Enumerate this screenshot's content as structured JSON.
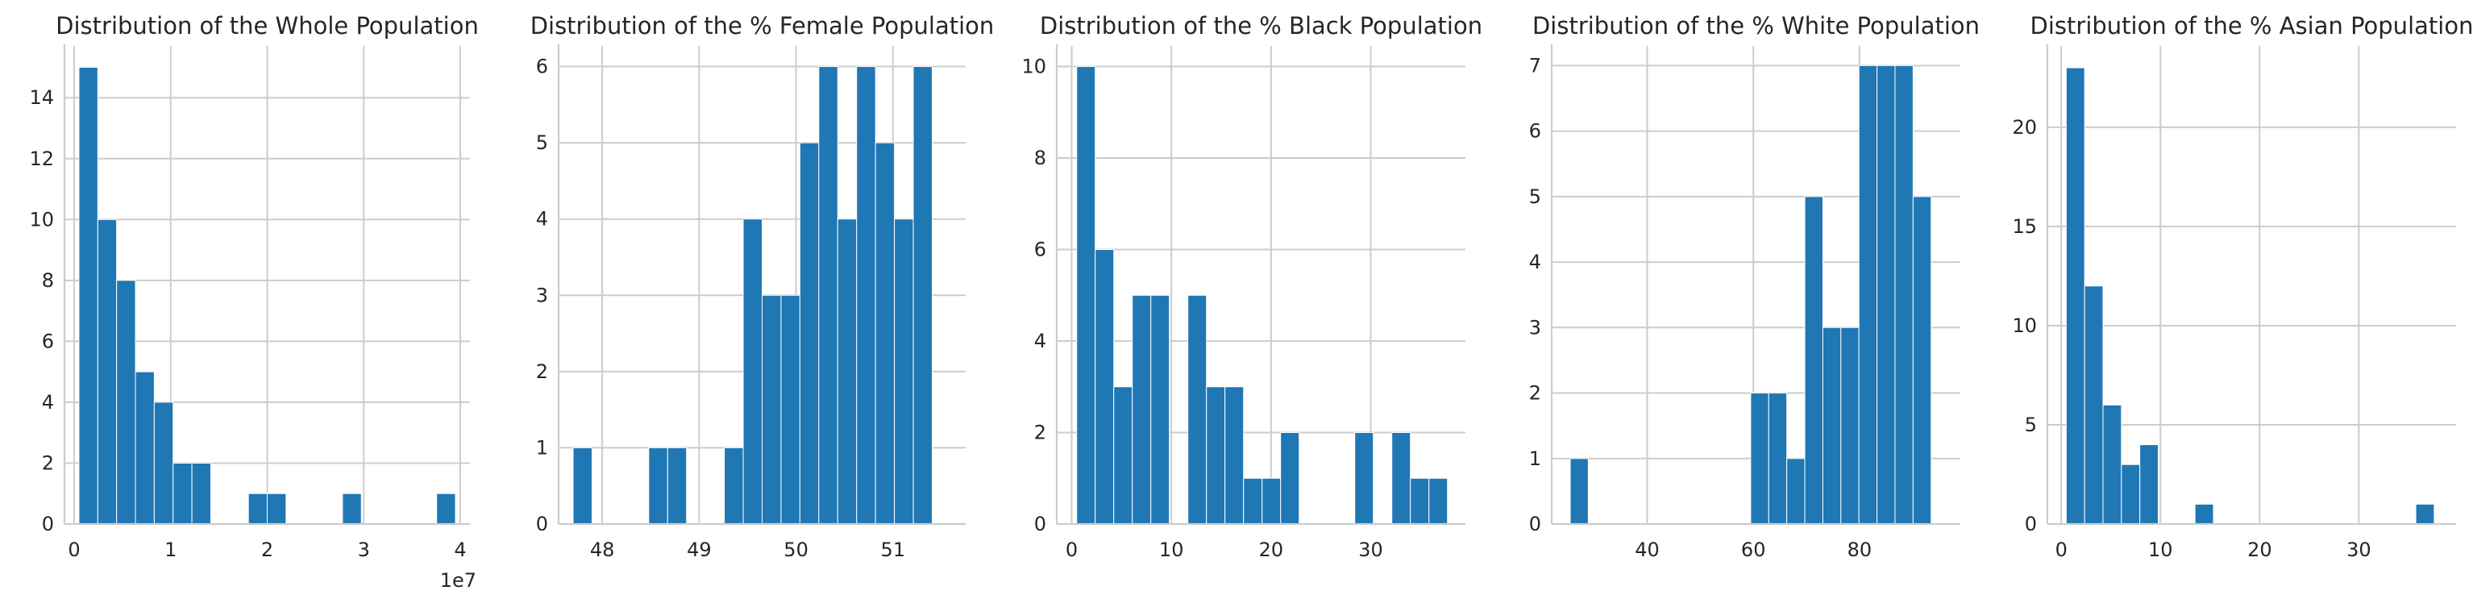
{
  "colors": {
    "bar": "#1f77b4",
    "grid": "#cccccc",
    "text": "#262626",
    "background": "#ffffff"
  },
  "chart_data": [
    {
      "type": "bar",
      "title": "Distribution of the Whole Population",
      "xlabel": "",
      "ylabel": "",
      "grid": true,
      "x_scale_label": "1e7",
      "xlim": [
        -0.1,
        4.1
      ],
      "ylim": [
        0,
        15.7
      ],
      "xticks": [
        0,
        1,
        2,
        3,
        4
      ],
      "xtick_labels": [
        "0",
        "1",
        "2",
        "3",
        "4"
      ],
      "yticks": [
        0,
        2,
        4,
        6,
        8,
        10,
        12,
        14
      ],
      "ytick_labels": [
        "0",
        "2",
        "4",
        "6",
        "8",
        "10",
        "12",
        "14"
      ],
      "bins": {
        "start": 0.05,
        "width": 0.195,
        "count": 20
      },
      "values": [
        15,
        10,
        8,
        5,
        4,
        2,
        2,
        0,
        0,
        1,
        1,
        0,
        0,
        0,
        1,
        0,
        0,
        0,
        0,
        1
      ]
    },
    {
      "type": "bar",
      "title": "Distribution of the % Female Population",
      "xlabel": "",
      "ylabel": "",
      "grid": true,
      "xlim": [
        47.55,
        51.75
      ],
      "ylim": [
        0,
        6.27
      ],
      "xticks": [
        48,
        49,
        50,
        51
      ],
      "xtick_labels": [
        "48",
        "49",
        "50",
        "51"
      ],
      "yticks": [
        0,
        1,
        2,
        3,
        4,
        5,
        6
      ],
      "ytick_labels": [
        "0",
        "1",
        "2",
        "3",
        "4",
        "5",
        "6"
      ],
      "bins": {
        "start": 47.7,
        "width": 0.195,
        "count": 20
      },
      "values": [
        1,
        0,
        0,
        0,
        1,
        1,
        0,
        0,
        1,
        4,
        3,
        3,
        5,
        6,
        4,
        6,
        5,
        4,
        6,
        0
      ]
    },
    {
      "type": "bar",
      "title": "Distribution of the % Black Population",
      "xlabel": "",
      "ylabel": "",
      "grid": true,
      "xlim": [
        -1.5,
        39.5
      ],
      "ylim": [
        0,
        10.45
      ],
      "xticks": [
        0,
        10,
        20,
        30
      ],
      "xtick_labels": [
        "0",
        "10",
        "20",
        "30"
      ],
      "yticks": [
        0,
        2,
        4,
        6,
        8,
        10
      ],
      "ytick_labels": [
        "0",
        "2",
        "4",
        "6",
        "8",
        "10"
      ],
      "bins": {
        "start": 0.5,
        "width": 1.86,
        "count": 20
      },
      "values": [
        10,
        6,
        3,
        5,
        5,
        0,
        5,
        3,
        3,
        1,
        1,
        2,
        0,
        0,
        0,
        2,
        0,
        2,
        1,
        1
      ]
    },
    {
      "type": "bar",
      "title": "Distribution of the %  White Population",
      "xlabel": "",
      "ylabel": "",
      "grid": true,
      "xlim": [
        22,
        99
      ],
      "ylim": [
        0,
        7.3
      ],
      "xticks": [
        40,
        60,
        80
      ],
      "xtick_labels": [
        "40",
        "60",
        "80"
      ],
      "yticks": [
        0,
        1,
        2,
        3,
        4,
        5,
        6,
        7
      ],
      "ytick_labels": [
        "0",
        "1",
        "2",
        "3",
        "4",
        "5",
        "6",
        "7"
      ],
      "bins": {
        "start": 25.5,
        "width": 3.4,
        "count": 20
      },
      "values": [
        1,
        0,
        0,
        0,
        0,
        0,
        0,
        0,
        0,
        0,
        2,
        2,
        1,
        5,
        3,
        3,
        7,
        7,
        7,
        5
      ]
    },
    {
      "type": "bar",
      "title": "Distribution of the % Asian Population",
      "xlabel": "",
      "ylabel": "",
      "grid": true,
      "xlim": [
        -1.4,
        39.8
      ],
      "ylim": [
        0,
        24.1
      ],
      "xticks": [
        0,
        10,
        20,
        30
      ],
      "xtick_labels": [
        "0",
        "10",
        "20",
        "30"
      ],
      "yticks": [
        0,
        5,
        10,
        15,
        20
      ],
      "ytick_labels": [
        "0",
        "5",
        "10",
        "15",
        "20"
      ],
      "bins": {
        "start": 0.5,
        "width": 1.855,
        "count": 20
      },
      "values": [
        23,
        12,
        6,
        3,
        4,
        0,
        0,
        1,
        0,
        0,
        0,
        0,
        0,
        0,
        0,
        0,
        0,
        0,
        0,
        1
      ]
    }
  ]
}
